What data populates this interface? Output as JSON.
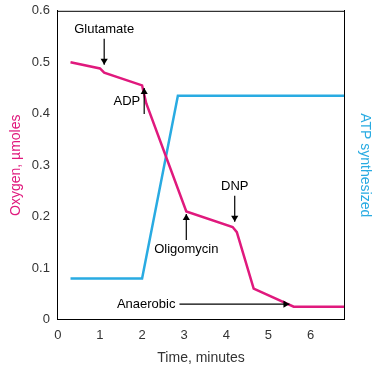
{
  "chart_data": {
    "type": "line",
    "x_label": "Time, minutes",
    "y_label": "Oxygen, µmoles",
    "y2_label": "ATP synthesized",
    "xlim": [
      0,
      6.8
    ],
    "xticks": [
      0,
      1,
      2,
      3,
      4,
      5,
      6
    ],
    "ylim": [
      0,
      0.6
    ],
    "yticks": [
      0,
      0.1,
      0.2,
      0.3,
      0.4,
      0.5,
      0.6
    ],
    "y2lim": [
      0,
      0.6
    ],
    "y2ticks": [],
    "grid": false,
    "series": [
      {
        "name": "Oxygen, µmoles",
        "color": "#e0197d",
        "x": [
          0.3,
          1.0,
          1.1,
          2.0,
          2.1,
          3.05,
          4.15,
          4.25,
          4.65,
          5.6,
          6.8
        ],
        "values": [
          0.5,
          0.488,
          0.48,
          0.455,
          0.42,
          0.21,
          0.18,
          0.17,
          0.06,
          0.025,
          0.025
        ]
      },
      {
        "name": "ATP synthesized",
        "color": "#29abe2",
        "axis": "y2",
        "x": [
          0.3,
          2.0,
          2.85,
          6.8
        ],
        "values": [
          0.08,
          0.08,
          0.435,
          0.435
        ]
      }
    ],
    "annotations": [
      {
        "text": "Glutamate",
        "x": 1.1,
        "y": 0.495
      },
      {
        "text": "ADP",
        "x": 2.05,
        "y": 0.45
      },
      {
        "text": "Oligomycin",
        "x": 3.05,
        "y": 0.205
      },
      {
        "text": "DNP",
        "x": 4.2,
        "y": 0.19
      },
      {
        "text": "Anaerobic",
        "x": 5.5,
        "y": 0.03
      }
    ]
  }
}
